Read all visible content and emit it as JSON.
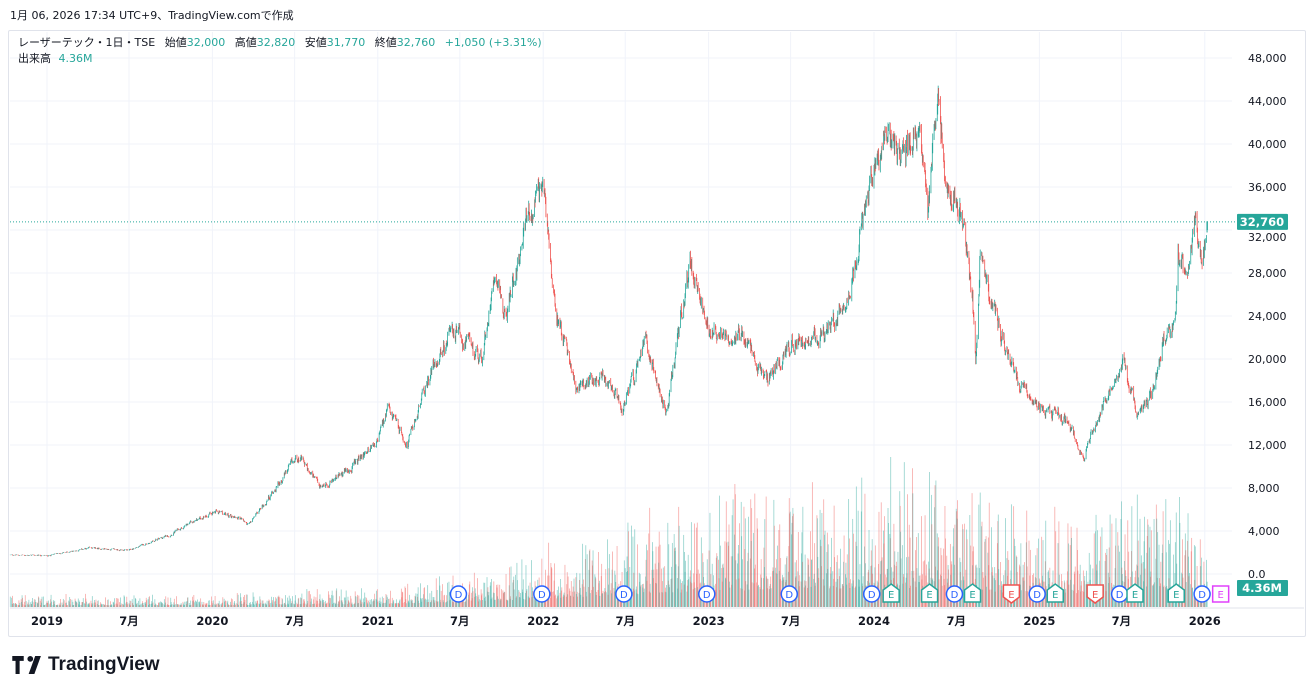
{
  "caption": "1月 06, 2026 17:34 UTC+9、TradingView.comで作成",
  "legend": {
    "symbol": "レーザーテック・1日・TSE",
    "open_label": "始値",
    "open": "32,000",
    "high_label": "高値",
    "high": "32,820",
    "low_label": "安値",
    "low": "31,770",
    "close_label": "終値",
    "close": "32,760",
    "change": "+1,050 (+3.31%)",
    "volume_label": "出来高",
    "volume": "4.36M"
  },
  "logo": {
    "text": "TradingView",
    "icon": "tradingview-logo-icon"
  },
  "colors": {
    "up": "#26a69a",
    "down": "#ef5350",
    "dividend": "#2962ff",
    "earnings_up": "#26a69a",
    "earnings_down": "#ef5350",
    "earnings_upcoming": "#e040fb",
    "grid": "#f0f3fa"
  },
  "chart_data": {
    "type": "candlestick",
    "interval": "1日",
    "y_ticks": [
      "48,000",
      "44,000",
      "40,000",
      "36,000",
      "32,000",
      "28,000",
      "24,000",
      "20,000",
      "16,000",
      "12,000",
      "8,000",
      "4,000",
      "0.0"
    ],
    "y_tick_values": [
      48000,
      44000,
      40000,
      36000,
      32000,
      28000,
      24000,
      20000,
      16000,
      12000,
      8000,
      4000,
      0
    ],
    "ylim": [
      0,
      48000
    ],
    "x_ticks": [
      {
        "label": "2019",
        "date": "2019-01-01"
      },
      {
        "label": "7月",
        "date": "2019-07-01"
      },
      {
        "label": "2020",
        "date": "2020-01-01"
      },
      {
        "label": "7月",
        "date": "2020-07-01"
      },
      {
        "label": "2021",
        "date": "2021-01-01"
      },
      {
        "label": "7月",
        "date": "2021-07-01"
      },
      {
        "label": "2022",
        "date": "2022-01-01"
      },
      {
        "label": "7月",
        "date": "2022-07-01"
      },
      {
        "label": "2023",
        "date": "2023-01-01"
      },
      {
        "label": "7月",
        "date": "2023-07-01"
      },
      {
        "label": "2024",
        "date": "2024-01-01"
      },
      {
        "label": "7月",
        "date": "2024-07-01"
      },
      {
        "label": "2025",
        "date": "2025-01-01"
      },
      {
        "label": "7月",
        "date": "2025-07-01"
      },
      {
        "label": "2026",
        "date": "2026-01-01"
      }
    ],
    "price_path": [
      [
        "2018-10-12",
        1770
      ],
      [
        "2019-01-01",
        1700
      ],
      [
        "2019-04-05",
        2400
      ],
      [
        "2019-07-01",
        2200
      ],
      [
        "2019-09-27",
        3600
      ],
      [
        "2020-01-01",
        5800
      ],
      [
        "2020-03-03",
        5200
      ],
      [
        "2020-03-21",
        4500
      ],
      [
        "2020-05-08",
        7300
      ],
      [
        "2020-07-09",
        11000
      ],
      [
        "2020-08-26",
        8000
      ],
      [
        "2020-10-30",
        9700
      ],
      [
        "2021-01-01",
        12500
      ],
      [
        "2021-01-23",
        15200
      ],
      [
        "2021-03-08",
        12000
      ],
      [
        "2021-04-20",
        18000
      ],
      [
        "2021-06-14",
        22700
      ],
      [
        "2021-08-19",
        19900
      ],
      [
        "2021-09-18",
        29200
      ],
      [
        "2021-10-09",
        23600
      ],
      [
        "2021-11-22",
        32500
      ],
      [
        "2022-01-01",
        35700
      ],
      [
        "2022-01-31",
        24500
      ],
      [
        "2022-03-15",
        17100
      ],
      [
        "2022-05-08",
        18500
      ],
      [
        "2022-06-27",
        15200
      ],
      [
        "2022-08-17",
        21800
      ],
      [
        "2022-09-30",
        14800
      ],
      [
        "2022-11-20",
        29200
      ],
      [
        "2023-01-01",
        22700
      ],
      [
        "2023-03-15",
        22200
      ],
      [
        "2023-05-08",
        18000
      ],
      [
        "2023-07-01",
        21300
      ],
      [
        "2023-09-27",
        22700
      ],
      [
        "2023-11-10",
        26400
      ],
      [
        "2023-12-13",
        34300
      ],
      [
        "2024-01-26",
        41300
      ],
      [
        "2024-03-11",
        38500
      ],
      [
        "2024-04-12",
        43100
      ],
      [
        "2024-04-29",
        33800
      ],
      [
        "2024-05-21",
        45000
      ],
      [
        "2024-06-08",
        36200
      ],
      [
        "2024-07-14",
        33400
      ],
      [
        "2024-08-06",
        25500
      ],
      [
        "2024-08-13",
        19000
      ],
      [
        "2024-08-22",
        29200
      ],
      [
        "2024-10-05",
        22700
      ],
      [
        "2024-11-18",
        17600
      ],
      [
        "2025-01-01",
        15700
      ],
      [
        "2025-03-07",
        14300
      ],
      [
        "2025-04-07",
        10600
      ],
      [
        "2025-05-12",
        14800
      ],
      [
        "2025-07-05",
        19900
      ],
      [
        "2025-08-07",
        14300
      ],
      [
        "2025-09-10",
        17100
      ],
      [
        "2025-10-02",
        21800
      ],
      [
        "2025-10-29",
        23600
      ],
      [
        "2025-11-03",
        30600
      ],
      [
        "2025-11-22",
        26900
      ],
      [
        "2025-12-10",
        32900
      ],
      [
        "2025-12-21",
        30100
      ],
      [
        "2025-12-28",
        29400
      ],
      [
        "2026-01-06",
        32760
      ]
    ],
    "volume_path_millions": [
      [
        "2018-10-12",
        1.0
      ],
      [
        "2019-12-31",
        1.0
      ],
      [
        "2020-12-31",
        1.5
      ],
      [
        "2021-06-30",
        2.5
      ],
      [
        "2021-12-31",
        4.5
      ],
      [
        "2022-06-30",
        7
      ],
      [
        "2022-12-31",
        9
      ],
      [
        "2023-06-30",
        10
      ],
      [
        "2023-12-31",
        11
      ],
      [
        "2024-06-30",
        10
      ],
      [
        "2024-12-31",
        7
      ],
      [
        "2025-06-30",
        8
      ],
      [
        "2025-09-15",
        12
      ],
      [
        "2026-01-06",
        5
      ]
    ],
    "last_candle": {
      "date": "2026-01-06",
      "open": 32000,
      "high": 32820,
      "low": 31770,
      "close": 32760,
      "volume_millions": 4.36
    },
    "last_price_label": "32,760",
    "last_volume_label": "4.36M",
    "events": [
      {
        "type": "D",
        "date": "2021-06-28"
      },
      {
        "type": "D",
        "date": "2021-12-29"
      },
      {
        "type": "D",
        "date": "2022-06-28"
      },
      {
        "type": "D",
        "date": "2022-12-28"
      },
      {
        "type": "D",
        "date": "2023-06-28"
      },
      {
        "type": "D",
        "date": "2023-12-27"
      },
      {
        "type": "E",
        "date": "2024-02-08",
        "result": "up"
      },
      {
        "type": "E",
        "date": "2024-05-03",
        "result": "up"
      },
      {
        "type": "D",
        "date": "2024-06-27"
      },
      {
        "type": "E",
        "date": "2024-08-06",
        "result": "up"
      },
      {
        "type": "E",
        "date": "2024-10-31",
        "result": "down"
      },
      {
        "type": "D",
        "date": "2024-12-27"
      },
      {
        "type": "E",
        "date": "2025-02-05",
        "result": "up"
      },
      {
        "type": "E",
        "date": "2025-05-04",
        "result": "down"
      },
      {
        "type": "D",
        "date": "2025-06-27"
      },
      {
        "type": "E",
        "date": "2025-07-31",
        "result": "up"
      },
      {
        "type": "E",
        "date": "2025-10-30",
        "result": "up"
      },
      {
        "type": "D",
        "date": "2025-12-26"
      },
      {
        "type": "E",
        "date": "2026-02-05",
        "result": "upcoming"
      }
    ]
  }
}
